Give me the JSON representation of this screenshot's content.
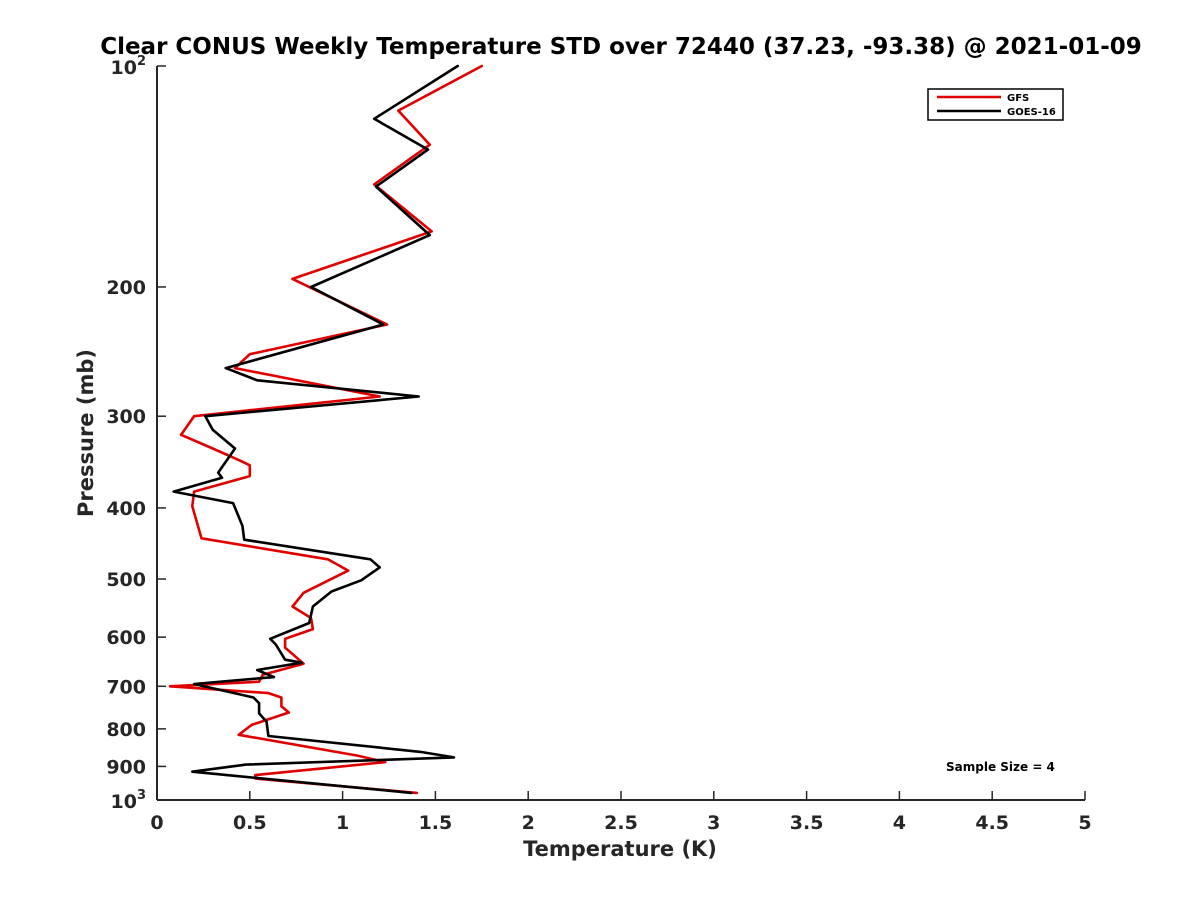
{
  "chart_data": {
    "type": "line",
    "title": "Clear CONUS Weekly Temperature STD over 72440 (37.23, -93.38) @ 2021-01-09",
    "xlabel": "Temperature (K)",
    "ylabel": "Pressure (mb)",
    "xlim": [
      0,
      5
    ],
    "ylim": [
      1000,
      100
    ],
    "y_scale": "log",
    "y_reversed": true,
    "x_ticks": [
      "0",
      "0.5",
      "1",
      "1.5",
      "2",
      "2.5",
      "3",
      "3.5",
      "4",
      "4.5",
      "5"
    ],
    "x_tick_values": [
      0,
      0.5,
      1,
      1.5,
      2,
      2.5,
      3,
      3.5,
      4,
      4.5,
      5
    ],
    "y_ticks": [
      {
        "value": 100,
        "base": "10",
        "exp": "2"
      },
      {
        "value": 200,
        "label": "200"
      },
      {
        "value": 300,
        "label": "300"
      },
      {
        "value": 400,
        "label": "400"
      },
      {
        "value": 500,
        "label": "500"
      },
      {
        "value": 600,
        "label": "600"
      },
      {
        "value": 700,
        "label": "700"
      },
      {
        "value": 800,
        "label": "800"
      },
      {
        "value": 900,
        "label": "900"
      },
      {
        "value": 1000,
        "base": "10",
        "exp": "3"
      }
    ],
    "grid": false,
    "legend_position": "top-right",
    "annotation": "Sample Size = 4",
    "series": [
      {
        "name": "GFS",
        "color": "#e00000",
        "points": [
          [
            1.75,
            100
          ],
          [
            1.3,
            115
          ],
          [
            1.47,
            128
          ],
          [
            1.17,
            145
          ],
          [
            1.48,
            168
          ],
          [
            0.73,
            195
          ],
          [
            1.24,
            225
          ],
          [
            0.5,
            247
          ],
          [
            0.42,
            258
          ],
          [
            1.2,
            282
          ],
          [
            0.2,
            300
          ],
          [
            0.13,
            318
          ],
          [
            0.3,
            332
          ],
          [
            0.45,
            345
          ],
          [
            0.5,
            350
          ],
          [
            0.5,
            362
          ],
          [
            0.2,
            380
          ],
          [
            0.19,
            398
          ],
          [
            0.24,
            440
          ],
          [
            0.92,
            470
          ],
          [
            1.03,
            487
          ],
          [
            0.79,
            522
          ],
          [
            0.73,
            545
          ],
          [
            0.83,
            565
          ],
          [
            0.84,
            585
          ],
          [
            0.69,
            603
          ],
          [
            0.69,
            620
          ],
          [
            0.79,
            652
          ],
          [
            0.57,
            675
          ],
          [
            0.55,
            690
          ],
          [
            0.07,
            700
          ],
          [
            0.6,
            715
          ],
          [
            0.67,
            725
          ],
          [
            0.67,
            745
          ],
          [
            0.71,
            760
          ],
          [
            0.51,
            790
          ],
          [
            0.44,
            815
          ],
          [
            1.08,
            870
          ],
          [
            1.23,
            888
          ],
          [
            0.53,
            925
          ],
          [
            0.53,
            935
          ],
          [
            1.4,
            978
          ]
        ]
      },
      {
        "name": "GOES-16",
        "color": "#000000",
        "points": [
          [
            1.62,
            100
          ],
          [
            1.17,
            118
          ],
          [
            1.46,
            130
          ],
          [
            1.18,
            146
          ],
          [
            1.47,
            170
          ],
          [
            0.83,
            200
          ],
          [
            1.22,
            225
          ],
          [
            0.37,
            258
          ],
          [
            0.54,
            268
          ],
          [
            1.41,
            282
          ],
          [
            0.26,
            300
          ],
          [
            0.3,
            313
          ],
          [
            0.42,
            332
          ],
          [
            0.33,
            358
          ],
          [
            0.35,
            364
          ],
          [
            0.09,
            380
          ],
          [
            0.41,
            394
          ],
          [
            0.46,
            423
          ],
          [
            0.47,
            442
          ],
          [
            1.15,
            470
          ],
          [
            1.2,
            482
          ],
          [
            1.1,
            502
          ],
          [
            0.94,
            520
          ],
          [
            0.84,
            545
          ],
          [
            0.82,
            574
          ],
          [
            0.61,
            603
          ],
          [
            0.64,
            614
          ],
          [
            0.69,
            644
          ],
          [
            0.78,
            650
          ],
          [
            0.54,
            665
          ],
          [
            0.63,
            680
          ],
          [
            0.2,
            695
          ],
          [
            0.52,
            725
          ],
          [
            0.55,
            738
          ],
          [
            0.55,
            762
          ],
          [
            0.59,
            782
          ],
          [
            0.6,
            818
          ],
          [
            1.42,
            860
          ],
          [
            1.6,
            875
          ],
          [
            0.48,
            895
          ],
          [
            0.19,
            915
          ],
          [
            1.37,
            978
          ]
        ]
      }
    ]
  }
}
